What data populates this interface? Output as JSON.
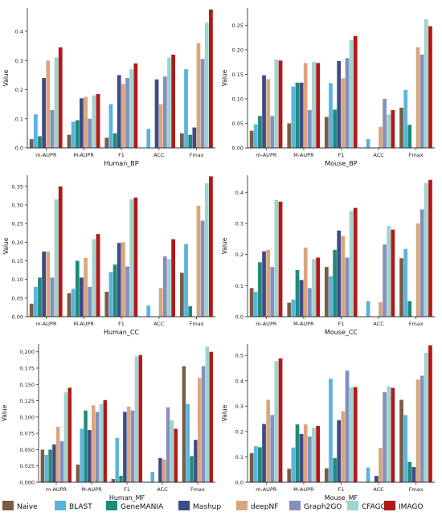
{
  "legend": [
    {
      "name": "Naive",
      "color": "#7a5c45"
    },
    {
      "name": "BLAST",
      "color": "#5ab4dc"
    },
    {
      "name": "GeneMANIA",
      "color": "#1e8a78"
    },
    {
      "name": "Mashup",
      "color": "#3d4b86"
    },
    {
      "name": "deepNF",
      "color": "#d9a67e"
    },
    {
      "name": "Graph2GO",
      "color": "#8390bd"
    },
    {
      "name": "CFAGO",
      "color": "#9ed3ce"
    },
    {
      "name": "IMAGO",
      "color": "#b11818"
    }
  ],
  "chart_data": [
    {
      "type": "bar",
      "xlabel": "Human_BP",
      "ylabel": "Value",
      "ylim": [
        0,
        0.48
      ],
      "yticks": [
        "0.0",
        "0.1",
        "0.2",
        "0.3",
        "0.4"
      ],
      "categories": [
        "m-AUPR",
        "M-AUPR",
        "F1",
        "ACC",
        "Fmax"
      ],
      "series": [
        {
          "name": "Naive",
          "values": [
            0.03,
            0.045,
            0.035,
            0.0,
            0.05
          ]
        },
        {
          "name": "BLAST",
          "values": [
            0.115,
            0.09,
            0.15,
            0.065,
            0.27
          ]
        },
        {
          "name": "GeneMANIA",
          "values": [
            0.04,
            0.095,
            0.05,
            0.0,
            0.045
          ]
        },
        {
          "name": "Mashup",
          "values": [
            0.24,
            0.17,
            0.25,
            0.235,
            0.07
          ]
        },
        {
          "name": "deepNF",
          "values": [
            0.3,
            0.175,
            0.22,
            0.15,
            0.36
          ]
        },
        {
          "name": "Graph2GO",
          "values": [
            0.13,
            0.1,
            0.24,
            0.245,
            0.305
          ]
        },
        {
          "name": "CFAGO",
          "values": [
            0.31,
            0.18,
            0.27,
            0.31,
            0.43
          ]
        },
        {
          "name": "IMAGO",
          "values": [
            0.345,
            0.185,
            0.29,
            0.32,
            0.475
          ]
        }
      ]
    },
    {
      "type": "bar",
      "xlabel": "Mouse_BP",
      "ylabel": "Value",
      "ylim": [
        0,
        0.285
      ],
      "yticks": [
        "0.00",
        "0.05",
        "0.10",
        "0.15",
        "0.20",
        "0.25"
      ],
      "categories": [
        "m-AUPR",
        "M-AUPR",
        "F1",
        "ACC",
        "Fmax"
      ],
      "series": [
        {
          "name": "Naive",
          "values": [
            0.035,
            0.05,
            0.063,
            0.0,
            0.082
          ]
        },
        {
          "name": "BLAST",
          "values": [
            0.048,
            0.125,
            0.132,
            0.018,
            0.118
          ]
        },
        {
          "name": "GeneMANIA",
          "values": [
            0.065,
            0.133,
            0.078,
            0.0,
            0.047
          ]
        },
        {
          "name": "Mashup",
          "values": [
            0.148,
            0.133,
            0.177,
            0.0,
            0.0
          ]
        },
        {
          "name": "deepNF",
          "values": [
            0.14,
            0.173,
            0.142,
            0.043,
            0.205
          ]
        },
        {
          "name": "Graph2GO",
          "values": [
            0.065,
            0.077,
            0.183,
            0.1,
            0.19
          ]
        },
        {
          "name": "CFAGO",
          "values": [
            0.18,
            0.175,
            0.22,
            0.068,
            0.262
          ]
        },
        {
          "name": "IMAGO",
          "values": [
            0.178,
            0.173,
            0.228,
            0.077,
            0.248
          ]
        }
      ]
    },
    {
      "type": "bar",
      "xlabel": "Human_CC",
      "ylabel": "Value",
      "ylim": [
        0,
        0.38
      ],
      "yticks": [
        "0.00",
        "0.05",
        "0.10",
        "0.15",
        "0.20",
        "0.25",
        "0.30",
        "0.35"
      ],
      "categories": [
        "m-AUPR",
        "M-AUPR",
        "F1",
        "ACC",
        "Fmax"
      ],
      "series": [
        {
          "name": "Naive",
          "values": [
            0.035,
            0.063,
            0.067,
            0.0,
            0.118
          ]
        },
        {
          "name": "BLAST",
          "values": [
            0.08,
            0.075,
            0.12,
            0.03,
            0.195
          ]
        },
        {
          "name": "GeneMANIA",
          "values": [
            0.105,
            0.15,
            0.14,
            0.0,
            0.028
          ]
        },
        {
          "name": "Mashup",
          "values": [
            0.175,
            0.105,
            0.198,
            0.0,
            0.0
          ]
        },
        {
          "name": "deepNF",
          "values": [
            0.175,
            0.158,
            0.2,
            0.077,
            0.298
          ]
        },
        {
          "name": "Graph2GO",
          "values": [
            0.105,
            0.08,
            0.135,
            0.162,
            0.258
          ]
        },
        {
          "name": "CFAGO",
          "values": [
            0.315,
            0.208,
            0.315,
            0.155,
            0.358
          ]
        },
        {
          "name": "IMAGO",
          "values": [
            0.35,
            0.222,
            0.32,
            0.208,
            0.377
          ]
        }
      ]
    },
    {
      "type": "bar",
      "xlabel": "Mouse_CC",
      "ylabel": "Value",
      "ylim": [
        0,
        0.455
      ],
      "yticks": [
        "0.0",
        "0.1",
        "0.2",
        "0.3",
        "0.4"
      ],
      "categories": [
        "m-AUPR",
        "M-AUPR",
        "F1",
        "ACC",
        "Fmax"
      ],
      "series": [
        {
          "name": "Naive",
          "values": [
            0.092,
            0.045,
            0.16,
            0.0,
            0.188
          ]
        },
        {
          "name": "BLAST",
          "values": [
            0.08,
            0.055,
            0.13,
            0.05,
            0.218
          ]
        },
        {
          "name": "GeneMANIA",
          "values": [
            0.175,
            0.15,
            0.215,
            0.0,
            0.05
          ]
        },
        {
          "name": "Mashup",
          "values": [
            0.21,
            0.118,
            0.277,
            0.0,
            0.0
          ]
        },
        {
          "name": "deepNF",
          "values": [
            0.215,
            0.222,
            0.26,
            0.047,
            0.3
          ]
        },
        {
          "name": "Graph2GO",
          "values": [
            0.16,
            0.092,
            0.19,
            0.232,
            0.345
          ]
        },
        {
          "name": "CFAGO",
          "values": [
            0.375,
            0.185,
            0.34,
            0.292,
            0.43
          ]
        },
        {
          "name": "IMAGO",
          "values": [
            0.37,
            0.19,
            0.35,
            0.28,
            0.44
          ]
        }
      ]
    },
    {
      "type": "bar",
      "xlabel": "Human_MF",
      "ylabel": "Value",
      "ylim": [
        0,
        0.212
      ],
      "yticks": [
        "0.000",
        "0.025",
        "0.050",
        "0.075",
        "0.100",
        "0.125",
        "0.150",
        "0.175",
        "0.200"
      ],
      "categories": [
        "m-AUPR",
        "M-AUPR",
        "F1",
        "ACC",
        "Fmax"
      ],
      "series": [
        {
          "name": "Naive",
          "values": [
            0.05,
            0.027,
            0.005,
            0.0,
            0.178
          ]
        },
        {
          "name": "BLAST",
          "values": [
            0.042,
            0.082,
            0.068,
            0.016,
            0.12
          ]
        },
        {
          "name": "GeneMANIA",
          "values": [
            0.05,
            0.11,
            0.01,
            0.0,
            0.04
          ]
        },
        {
          "name": "Mashup",
          "values": [
            0.058,
            0.08,
            0.108,
            0.037,
            0.065
          ]
        },
        {
          "name": "deepNF",
          "values": [
            0.085,
            0.118,
            0.116,
            0.035,
            0.16
          ]
        },
        {
          "name": "Graph2GO",
          "values": [
            0.063,
            0.108,
            0.11,
            0.115,
            0.178
          ]
        },
        {
          "name": "CFAGO",
          "values": [
            0.138,
            0.12,
            0.193,
            0.095,
            0.208
          ]
        },
        {
          "name": "IMAGO",
          "values": [
            0.145,
            0.126,
            0.195,
            0.082,
            0.2
          ]
        }
      ]
    },
    {
      "type": "bar",
      "xlabel": "Mouse_MF",
      "ylabel": "Value",
      "ylim": [
        0,
        0.545
      ],
      "yticks": [
        "0.0",
        "0.1",
        "0.2",
        "0.3",
        "0.4",
        "0.5"
      ],
      "categories": [
        "m-AUPR",
        "M-AUPR",
        "F1",
        "ACC",
        "Fmax"
      ],
      "series": [
        {
          "name": "Naive",
          "values": [
            0.115,
            0.053,
            0.055,
            0.0,
            0.325
          ]
        },
        {
          "name": "BLAST",
          "values": [
            0.142,
            0.137,
            0.408,
            0.058,
            0.265
          ]
        },
        {
          "name": "GeneMANIA",
          "values": [
            0.138,
            0.228,
            0.095,
            0.0,
            0.08
          ]
        },
        {
          "name": "Mashup",
          "values": [
            0.23,
            0.19,
            0.245,
            0.025,
            0.06
          ]
        },
        {
          "name": "deepNF",
          "values": [
            0.325,
            0.228,
            0.28,
            0.135,
            0.405
          ]
        },
        {
          "name": "Graph2GO",
          "values": [
            0.265,
            0.18,
            0.44,
            0.355,
            0.42
          ]
        },
        {
          "name": "CFAGO",
          "values": [
            0.478,
            0.215,
            0.375,
            0.378,
            0.51
          ]
        },
        {
          "name": "IMAGO",
          "values": [
            0.488,
            0.222,
            0.375,
            0.372,
            0.54
          ]
        }
      ]
    }
  ]
}
